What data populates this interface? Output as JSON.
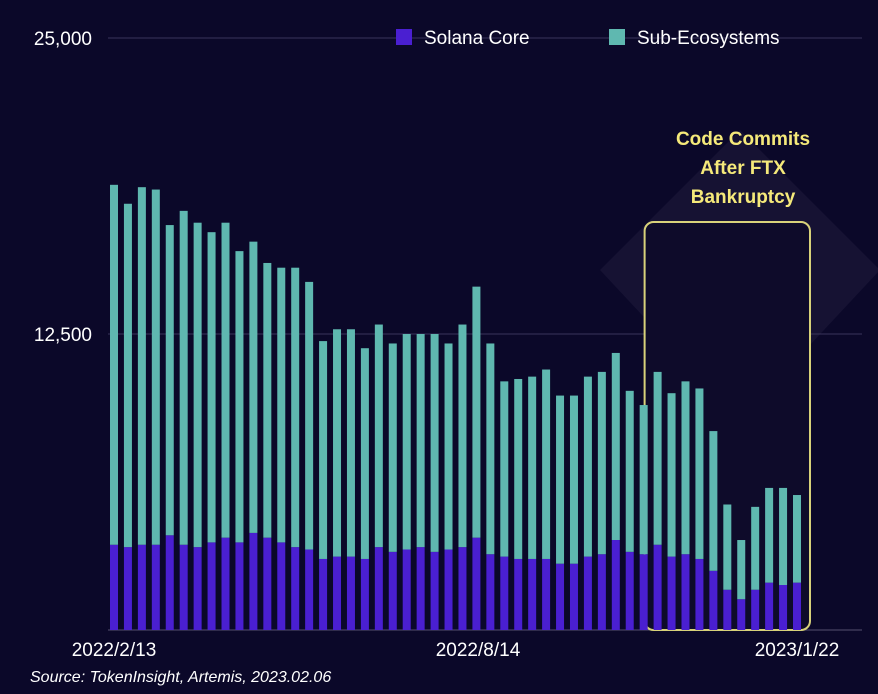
{
  "chart_data": {
    "type": "bar",
    "stacked": true,
    "y_ticks": [
      "25,000",
      "12,500"
    ],
    "ylim": [
      0,
      25000
    ],
    "x_tick_labels": [
      "2022/2/13",
      "2022/8/14",
      "2023/1/22"
    ],
    "series": [
      {
        "name": "Solana Core",
        "color": "#4a1fd1",
        "values": [
          3600,
          3500,
          3600,
          3600,
          4000,
          3600,
          3500,
          3700,
          3900,
          3700,
          4100,
          3900,
          3700,
          3500,
          3400,
          3000,
          3100,
          3100,
          3000,
          3500,
          3300,
          3400,
          3500,
          3300,
          3400,
          3500,
          3900,
          3200,
          3100,
          3000,
          3000,
          3000,
          2800,
          2800,
          3100,
          3200,
          3800,
          3300,
          3200,
          3600,
          3100,
          3200,
          3000,
          2500,
          1700,
          1300,
          1700,
          2000,
          1900,
          2000
        ]
      },
      {
        "name": "Sub-Ecosystems",
        "color": "#5fb8b0",
        "values": [
          15200,
          14500,
          15100,
          15000,
          13100,
          14100,
          13700,
          13100,
          13300,
          12300,
          12300,
          11600,
          11600,
          11800,
          11300,
          9200,
          9600,
          9600,
          8900,
          9400,
          8800,
          9100,
          9000,
          9200,
          8700,
          9400,
          10600,
          8900,
          7400,
          7600,
          7700,
          8000,
          7100,
          7100,
          7600,
          7700,
          7900,
          6800,
          6300,
          7300,
          6900,
          7300,
          7200,
          5900,
          3600,
          2500,
          3500,
          4000,
          4100,
          3700
        ]
      }
    ],
    "highlight": {
      "label_lines": [
        "Code Commits",
        "After FTX",
        "Bankruptcy"
      ],
      "start_index": 39,
      "end_index": 49
    },
    "source": "Source: TokenInsight, Artemis, 2023.02.06",
    "colors": {
      "background": "#0b0829",
      "highlight_text": "#f5e97a",
      "highlight_glow": "#d8d27a"
    }
  }
}
